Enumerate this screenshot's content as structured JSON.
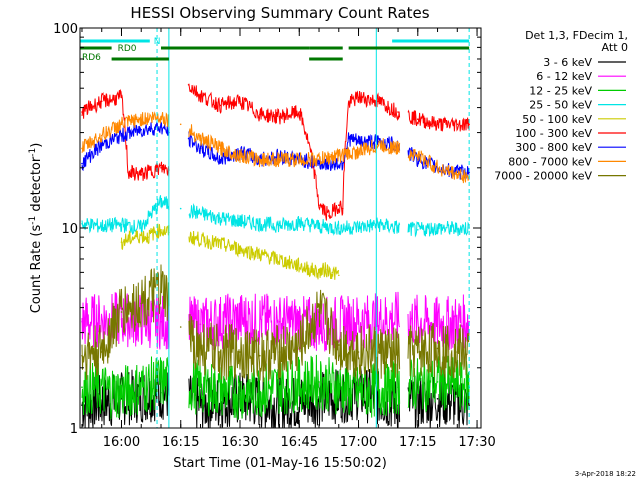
{
  "chart_data": {
    "type": "line",
    "title": "HESSI Observing Summary Count Rates",
    "xlabel": "Start Time (01-May-16 15:50:02)",
    "ylabel": "Count Rate (s",
    "ylabel_sup": "-1",
    "ylabel_tail": " detector",
    "ylabel_tail_sup": "-1",
    "ylabel_close": ")",
    "yscale": "log",
    "ylim": [
      1,
      100
    ],
    "xlim": [
      "15:50",
      "17:31"
    ],
    "xtick_labels": [
      "16:00",
      "16:15",
      "16:30",
      "16:45",
      "17:00",
      "17:15",
      "17:30"
    ],
    "xtick_minutes": [
      600,
      1500,
      2400,
      3300,
      4200,
      5100,
      6000
    ],
    "ytick_labels": [
      "1",
      "10",
      "100"
    ],
    "ytick_values": [
      1,
      10,
      100
    ],
    "x_minutes_start": -30,
    "x_minutes_end": 6060,
    "legend": {
      "header_line1": "Det 1,3, FDecim 1,",
      "header_line2": "Att 0",
      "placement": "right"
    },
    "gaps": [
      [
        1320,
        1620
      ],
      [
        4830,
        4950
      ]
    ],
    "vlines_cyan": [
      1140,
      1320,
      4470,
      5880
    ],
    "flags": [
      {
        "label": "N",
        "color": "#00e5e5",
        "start": -30,
        "end": 1030
      },
      {
        "label": "",
        "color": "#00e5e5",
        "start": 4710,
        "end": 5880
      },
      {
        "label": "RD0",
        "color": "#007700",
        "start": -30,
        "end": 450
      },
      {
        "label": "",
        "color": "#007700",
        "start": 1200,
        "end": 3450
      },
      {
        "label": "",
        "color": "#007700",
        "start": 3450,
        "end": 3960
      },
      {
        "label": "",
        "color": "#007700",
        "start": 4050,
        "end": 5880
      },
      {
        "label": "RD6",
        "color": "#007700",
        "start": 450,
        "end": 1320
      },
      {
        "label": "",
        "color": "#007700",
        "start": 3450,
        "end": 3960
      }
    ],
    "flag_labels": {
      "n": "N",
      "rd0": "RD0",
      "rd6": "RD6"
    },
    "series": [
      {
        "name": "3 - 6 keV",
        "color": "#000000",
        "x": [
          0,
          600,
          1200,
          1800,
          2400,
          3000,
          3600,
          4200,
          4800,
          5400,
          5880
        ],
        "y": [
          1.3,
          1.4,
          1.5,
          1.3,
          1.4,
          1.3,
          1.4,
          1.5,
          1.3,
          1.4,
          1.3
        ]
      },
      {
        "name": "6 - 12 keV",
        "color": "#ff00ff",
        "x": [
          0,
          600,
          1200,
          1800,
          2400,
          3000,
          3600,
          4200,
          4800,
          5400,
          5880
        ],
        "y": [
          3.4,
          3.5,
          3.4,
          3.3,
          3.5,
          3.4,
          3.3,
          3.4,
          3.5,
          3.3,
          3.4
        ]
      },
      {
        "name": "12 - 25 keV",
        "color": "#00cc00",
        "x": [
          0,
          600,
          1200,
          1800,
          2400,
          3000,
          3600,
          4200,
          4800,
          5400,
          5880
        ],
        "y": [
          1.6,
          1.5,
          1.7,
          1.6,
          1.5,
          1.6,
          1.7,
          1.5,
          1.6,
          1.7,
          1.6
        ]
      },
      {
        "name": "25 - 50 keV",
        "color": "#00e5e5",
        "x": [
          0,
          300,
          600,
          900,
          1200,
          1500,
          1800,
          2100,
          2400,
          2700,
          3000,
          3300,
          3600,
          3900,
          4200,
          4500,
          4800,
          5100,
          5400,
          5700,
          5880
        ],
        "y": [
          10.5,
          10.2,
          10.4,
          10.0,
          13.5,
          12.5,
          11.8,
          11.2,
          10.8,
          10.5,
          10.3,
          10.6,
          10.2,
          10.0,
          10.1,
          10.4,
          10.0,
          9.8,
          10.0,
          9.9,
          10.0
        ]
      },
      {
        "name": "50 - 100 keV",
        "color": "#cccc00",
        "x": [
          600,
          700,
          800,
          900,
          1000,
          1100,
          1200,
          1320,
          3600,
          3700,
          3800,
          3900
        ],
        "y": [
          8.5,
          8.8,
          9.0,
          9.2,
          9.0,
          9.5,
          9.8,
          9.5,
          6.0,
          6.2,
          6.0,
          5.8
        ]
      },
      {
        "name": "100 - 300 keV",
        "color": "#ff0000",
        "x": [
          0,
          300,
          600,
          700,
          900,
          1200,
          1320,
          1620,
          1800,
          2100,
          2400,
          2700,
          3000,
          3300,
          3600,
          3750,
          3900,
          3960,
          4050,
          4200,
          4500,
          4800,
          5100,
          5400,
          5700,
          5880
        ],
        "y": [
          38,
          43,
          45,
          19,
          18.5,
          20,
          19.5,
          52,
          46,
          41,
          43,
          37,
          36,
          38,
          13,
          11.5,
          13,
          12.5,
          42,
          45,
          43,
          38,
          35,
          33,
          33,
          33
        ]
      },
      {
        "name": "300 - 800 keV",
        "color": "#0000ff",
        "x": [
          0,
          300,
          600,
          900,
          1200,
          1320,
          1620,
          1800,
          2100,
          2400,
          2700,
          3000,
          3300,
          3600,
          3960,
          4050,
          4200,
          4500,
          4800,
          5100,
          5400,
          5700,
          5880
        ],
        "y": [
          21,
          26,
          29,
          31,
          32,
          30,
          28,
          25,
          22,
          24,
          22,
          23,
          22,
          21,
          21,
          28,
          27,
          27,
          26,
          22,
          20,
          19,
          19
        ]
      },
      {
        "name": "800 - 7000 keV",
        "color": "#ff8800",
        "x": [
          0,
          300,
          600,
          900,
          1200,
          1500,
          1800,
          2100,
          2400,
          2700,
          3000,
          3300,
          3600,
          3900,
          4200,
          4500,
          4800,
          5100,
          5400,
          5700,
          5880
        ],
        "y": [
          25,
          29,
          33,
          35,
          36,
          33,
          28,
          25,
          23,
          22,
          22,
          22,
          22,
          23,
          24,
          26,
          25,
          23,
          20,
          18.5,
          18
        ]
      },
      {
        "name": "7000 - 20000 keV",
        "color": "#777700",
        "x": [
          0,
          300,
          600,
          900,
          1200,
          1500,
          1800,
          2100,
          2400,
          2700,
          3000,
          3300,
          3600,
          3900,
          4200,
          4500,
          4800,
          5100,
          5400,
          5700,
          5880
        ],
        "y": [
          2.3,
          2.4,
          3.8,
          4.2,
          4.8,
          3.2,
          2.5,
          2.4,
          2.4,
          2.3,
          2.4,
          2.5,
          3.8,
          2.6,
          2.4,
          2.4,
          2.3,
          2.4,
          2.5,
          2.4,
          2.4
        ]
      }
    ]
  },
  "footer": "3-Apr-2018 18:22"
}
